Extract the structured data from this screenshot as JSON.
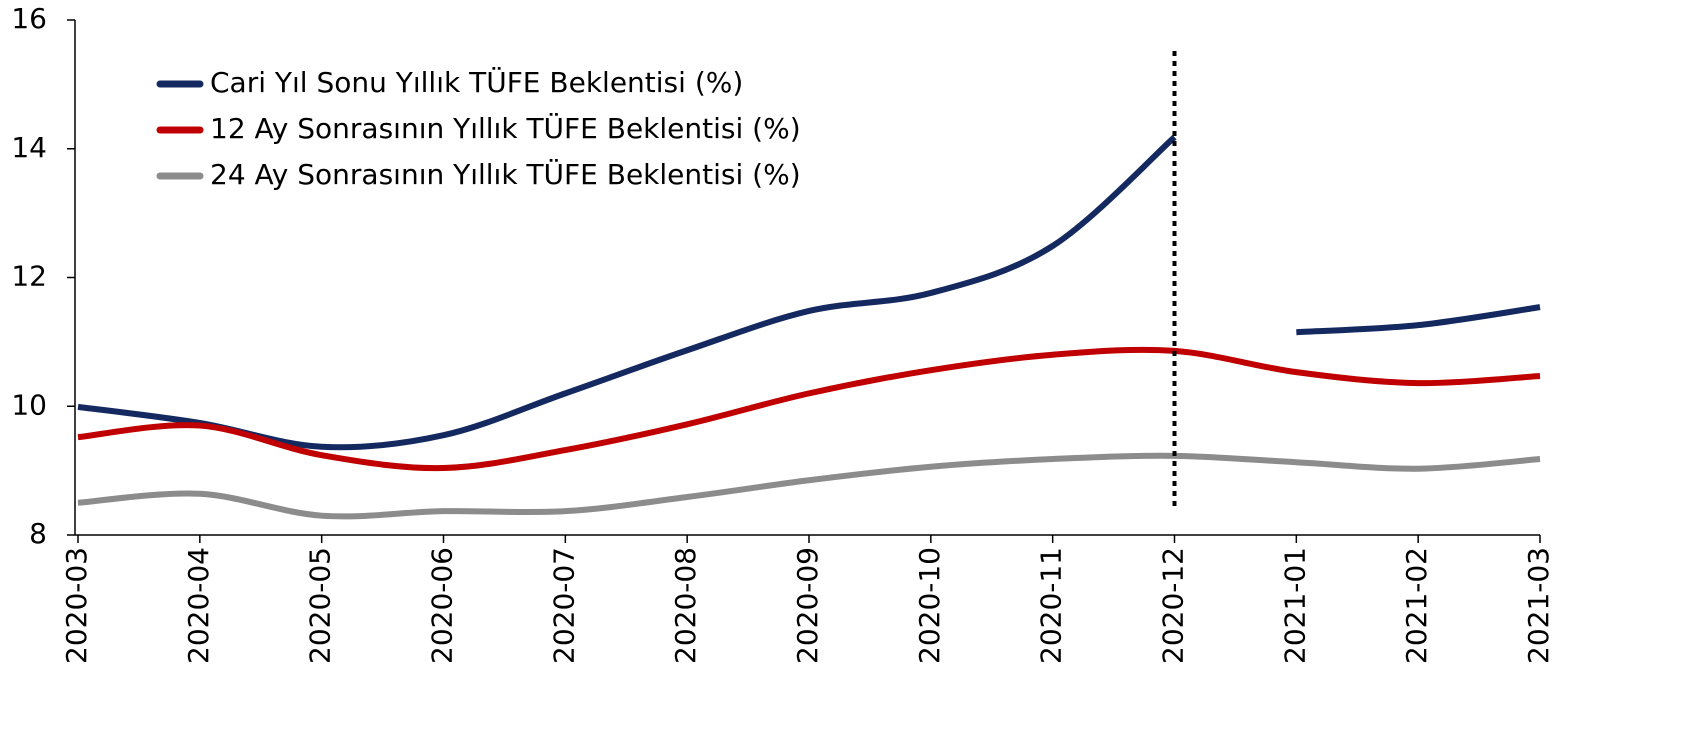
{
  "chart_data": {
    "type": "line",
    "categories": [
      "2020-03",
      "2020-04",
      "2020-05",
      "2020-06",
      "2020-07",
      "2020-08",
      "2020-09",
      "2020-10",
      "2020-11",
      "2020-12",
      "2021-01",
      "2021-02",
      "2021-03"
    ],
    "series": [
      {
        "name": "Cari Yıl Sonu Yıllık TÜFE Beklentisi (%)",
        "color": "#14295f",
        "break_at_marker": true,
        "values": [
          9.99,
          9.74,
          9.37,
          9.55,
          10.2,
          10.87,
          11.48,
          11.76,
          12.49,
          14.18,
          11.15,
          11.26,
          11.54
        ]
      },
      {
        "name": "12 Ay Sonrasının Yıllık TÜFE Beklentisi (%)",
        "color": "#c00000",
        "values": [
          9.52,
          9.7,
          9.24,
          9.04,
          9.32,
          9.72,
          10.2,
          10.56,
          10.8,
          10.86,
          10.53,
          10.36,
          10.47
        ]
      },
      {
        "name": "24 Ay Sonrasının Yıllık TÜFE Beklentisi (%)",
        "color": "#8c8c8c",
        "values": [
          8.5,
          8.64,
          8.3,
          8.37,
          8.37,
          8.59,
          8.85,
          9.06,
          9.18,
          9.23,
          9.13,
          9.03,
          9.18
        ]
      }
    ],
    "marker": {
      "x": "2020-12",
      "y": [
        8.45,
        15.55
      ],
      "style": "dotted"
    },
    "ylim": [
      8,
      16
    ],
    "yticks": [
      8,
      10,
      12,
      14,
      16
    ],
    "grid": false,
    "legend": "upper left"
  }
}
